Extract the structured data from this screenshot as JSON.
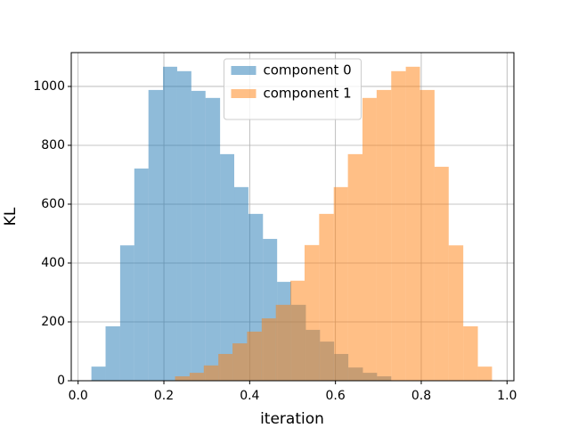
{
  "chart_data": {
    "type": "histogram",
    "xlabel": "iteration",
    "ylabel": "KL",
    "series": [
      {
        "name": "component 0",
        "color": "#1f77b4",
        "alpha": 0.5,
        "bins": [
          0.031,
          0.064,
          0.098,
          0.131,
          0.164,
          0.198,
          0.231,
          0.264,
          0.297,
          0.331,
          0.364,
          0.397,
          0.431,
          0.464,
          0.497,
          0.531,
          0.564,
          0.597,
          0.63,
          0.664,
          0.697,
          0.73
        ],
        "values": [
          48,
          185,
          460,
          721,
          988,
          1067,
          1052,
          985,
          961,
          770,
          658,
          567,
          482,
          336,
          258,
          173,
          133,
          91,
          45,
          27,
          15
        ]
      },
      {
        "name": "component 1",
        "color": "#ff7f0e",
        "alpha": 0.5,
        "bins": [
          0.226,
          0.26,
          0.293,
          0.327,
          0.36,
          0.394,
          0.428,
          0.461,
          0.495,
          0.528,
          0.562,
          0.596,
          0.629,
          0.663,
          0.696,
          0.73,
          0.764,
          0.797,
          0.831,
          0.864,
          0.898,
          0.932,
          0.965
        ],
        "values": [
          15,
          27,
          52,
          91,
          127,
          167,
          212,
          258,
          340,
          461,
          567,
          658,
          770,
          961,
          988,
          1052,
          1067,
          988,
          727,
          460,
          185,
          48
        ]
      }
    ],
    "xlim": [
      -0.016,
      1.016
    ],
    "ylim": [
      0,
      1115
    ],
    "xticks": [
      {
        "value": 0,
        "label": "0.0"
      },
      0.2,
      0.4,
      0.6,
      0.8,
      {
        "value": 1,
        "label": "1.0"
      }
    ],
    "yticks": [
      0,
      200,
      400,
      600,
      800,
      1000
    ],
    "grid": true,
    "legend": "upper center"
  }
}
